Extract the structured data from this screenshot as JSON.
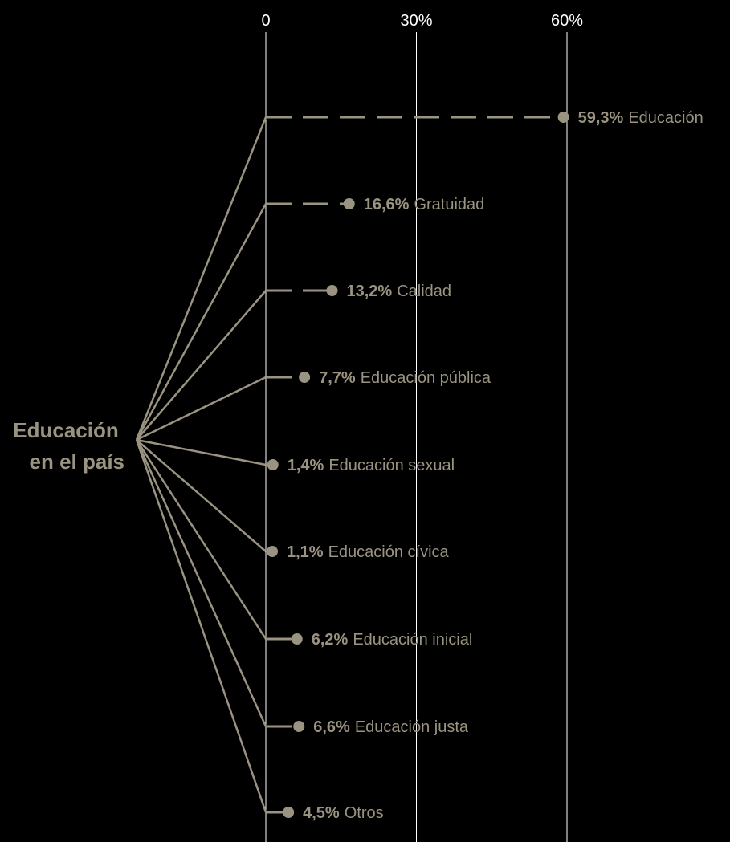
{
  "chart_data": {
    "type": "bar",
    "root_label": [
      "Educación",
      "en el país"
    ],
    "x_ticks": [
      "0",
      "30%",
      "60%"
    ],
    "xlim": [
      0,
      60
    ],
    "grid": true,
    "categories": [
      "Educación",
      "Gratuidad",
      "Calidad",
      "Educación pública",
      "Educación sexual",
      "Educación cívica",
      "Educación inicial",
      "Educación justa",
      "Otros"
    ],
    "values": [
      59.3,
      16.6,
      13.2,
      7.7,
      1.4,
      1.1,
      6.2,
      6.6,
      4.5
    ],
    "value_labels": [
      "59,3%",
      "16,6%",
      "13,2%",
      "7,7%",
      "1,4%",
      "1,1%",
      "6,2%",
      "6,6%",
      "4,5%"
    ],
    "colors": {
      "background": "#000000",
      "accent": "#9a9381",
      "grid": "#ffffff"
    }
  }
}
